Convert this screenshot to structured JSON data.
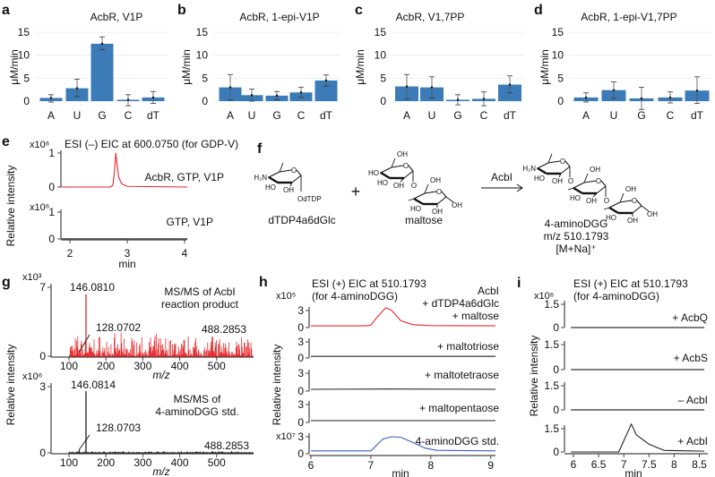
{
  "panel_letters": [
    "a",
    "b",
    "c",
    "d",
    "e",
    "f",
    "g",
    "h",
    "i"
  ],
  "chart_data": [
    {
      "panel": "a",
      "type": "bar",
      "title": "AcbR, V1P",
      "ylabel": "μM/min",
      "categories": [
        "A",
        "U",
        "G",
        "C",
        "dT"
      ],
      "values": [
        0.7,
        2.8,
        12.5,
        0.3,
        0.8
      ],
      "err_low": [
        -0.2,
        1.0,
        11.2,
        -1.0,
        -0.5
      ],
      "err_high": [
        1.4,
        4.8,
        14.0,
        1.4,
        2.1
      ],
      "ylim": [
        0,
        15
      ],
      "yticks": [
        0,
        5,
        10,
        15
      ],
      "color": "#3a7bb8"
    },
    {
      "panel": "b",
      "type": "bar",
      "title": "AcbR, 1-epi-V1P",
      "ylabel": "μM/min",
      "categories": [
        "A",
        "U",
        "G",
        "C",
        "dT"
      ],
      "values": [
        3.0,
        1.3,
        1.2,
        1.9,
        4.5
      ],
      "err_low": [
        0.2,
        0.0,
        0.3,
        0.8,
        3.3
      ],
      "err_high": [
        5.8,
        2.6,
        2.1,
        3.0,
        5.7
      ],
      "ylim": [
        0,
        15
      ],
      "yticks": [
        0,
        5,
        10,
        15
      ],
      "color": "#3a7bb8"
    },
    {
      "panel": "c",
      "type": "bar",
      "title": "AcbR, V1,7PP",
      "ylabel": "μM/min",
      "categories": [
        "A",
        "U",
        "G",
        "C",
        "dT"
      ],
      "values": [
        3.2,
        3.0,
        0.3,
        0.5,
        3.6
      ],
      "err_low": [
        0.5,
        0.7,
        -0.8,
        -1.0,
        1.8
      ],
      "err_high": [
        5.8,
        5.3,
        1.4,
        2.0,
        5.5
      ],
      "ylim": [
        0,
        15
      ],
      "yticks": [
        0,
        5,
        10,
        15
      ],
      "color": "#3a7bb8"
    },
    {
      "panel": "d",
      "type": "bar",
      "title": "AcbR, 1-epi-V1,7PP",
      "ylabel": "μM/min",
      "categories": [
        "A",
        "U",
        "G",
        "C",
        "dT"
      ],
      "values": [
        0.8,
        2.4,
        0.6,
        0.8,
        2.3
      ],
      "err_low": [
        -0.2,
        0.6,
        -1.8,
        -0.4,
        -0.5
      ],
      "err_high": [
        1.8,
        4.2,
        3.0,
        2.0,
        5.3
      ],
      "ylim": [
        0,
        15
      ],
      "yticks": [
        0,
        5,
        10,
        15
      ],
      "color": "#3a7bb8"
    },
    {
      "panel": "e",
      "type": "line",
      "title": "ESI (–) EIC at 600.0750 (for GDP-V)",
      "xlabel": "min",
      "ylabel": "Relative intensity",
      "xlim": [
        1.85,
        4.05
      ],
      "xticks": [
        2,
        3,
        4
      ],
      "subplots": [
        {
          "label": "AcbR, GTP, V1P",
          "scale": "x10⁶",
          "yticks": [
            0,
            1
          ],
          "color": "#e8262a",
          "points": [
            [
              1.85,
              0
            ],
            [
              2.7,
              0
            ],
            [
              2.75,
              0.05
            ],
            [
              2.78,
              0.5
            ],
            [
              2.8,
              1.0
            ],
            [
              2.82,
              0.7
            ],
            [
              2.85,
              0.3
            ],
            [
              2.9,
              0.1
            ],
            [
              3.0,
              0.02
            ],
            [
              4.05,
              0
            ]
          ]
        },
        {
          "label": "GTP, V1P",
          "scale": "x10⁶",
          "yticks": [
            0,
            1
          ],
          "color": "#555555",
          "points": [
            [
              1.85,
              0
            ],
            [
              4.05,
              0
            ]
          ]
        }
      ]
    },
    {
      "panel": "g",
      "type": "line",
      "xlabel": "m/z",
      "ylabel": "Relative intensity",
      "xlim": [
        50,
        600
      ],
      "xticks": [
        100,
        200,
        300,
        400,
        500
      ],
      "subplots": [
        {
          "title_lines": [
            "MS/MS of AcbI",
            "reaction product"
          ],
          "scale": "x10³",
          "yticks": [
            0,
            7
          ],
          "color": "#e8262a",
          "peaks": [
            {
              "mz": 146.081,
              "intensity": 6.3,
              "label": "146.0810"
            },
            {
              "mz": 128.0702,
              "intensity": 0.5,
              "label": "128.0702"
            },
            {
              "mz": 488.2853,
              "intensity": 2.0,
              "label": "488.2853"
            }
          ]
        },
        {
          "title_lines": [
            "MS/MS of",
            "4-aminoDGG std."
          ],
          "scale": "x10⁶",
          "yticks": [
            0,
            3
          ],
          "color": "#222222",
          "peaks": [
            {
              "mz": 146.0814,
              "intensity": 2.8,
              "label": "146.0814"
            },
            {
              "mz": 128.0703,
              "intensity": 0.12,
              "label": "128.0703"
            },
            {
              "mz": 488.2853,
              "intensity": 0.08,
              "label": "488.2853"
            }
          ]
        }
      ]
    },
    {
      "panel": "h",
      "type": "line",
      "title_lines": [
        "ESI (+) EIC at 510.1793",
        "(for 4-aminoDGG)"
      ],
      "xlabel": "min",
      "ylabel": "Relative intensity",
      "xlim": [
        6,
        9.08
      ],
      "xticks": [
        6,
        7,
        8,
        9
      ],
      "subplots": [
        {
          "label_lines": [
            "AcbI",
            "+ dTDP4a6dGlc",
            "+ maltose"
          ],
          "scale": "x10⁵",
          "yticks": [
            0,
            3
          ],
          "color": "#e8262a",
          "points": [
            [
              6,
              0.3
            ],
            [
              6.9,
              0.3
            ],
            [
              7.0,
              0.4
            ],
            [
              7.1,
              1.8
            ],
            [
              7.25,
              3.5
            ],
            [
              7.35,
              3.0
            ],
            [
              7.5,
              1.2
            ],
            [
              7.7,
              0.5
            ],
            [
              8,
              0.35
            ],
            [
              9.08,
              0.3
            ]
          ]
        },
        {
          "label_lines": [
            "+ maltotriose"
          ],
          "yticks": [
            0,
            3
          ],
          "color": "#222222",
          "points": [
            [
              6,
              0.3
            ],
            [
              9.08,
              0.3
            ]
          ]
        },
        {
          "label_lines": [
            "+ maltotetraose"
          ],
          "yticks": [
            0,
            3
          ],
          "color": "#222222",
          "points": [
            [
              6,
              0.3
            ],
            [
              7.3,
              0.35
            ],
            [
              9.08,
              0.3
            ]
          ]
        },
        {
          "label_lines": [
            "+ maltopentaose"
          ],
          "yticks": [
            0,
            3
          ],
          "color": "#222222",
          "points": [
            [
              6,
              0.3
            ],
            [
              9.08,
              0.3
            ]
          ]
        },
        {
          "label_lines": [
            "4-aminoDGG std."
          ],
          "scale": "x10⁷",
          "yticks": [
            0,
            3
          ],
          "color": "#3a5fbf",
          "points": [
            [
              6,
              0.5
            ],
            [
              7.0,
              0.5
            ],
            [
              7.05,
              1.0
            ],
            [
              7.2,
              2.6
            ],
            [
              7.35,
              3.0
            ],
            [
              7.5,
              2.9
            ],
            [
              7.7,
              2.0
            ],
            [
              7.9,
              1.0
            ],
            [
              8.1,
              0.6
            ],
            [
              9.08,
              0.5
            ]
          ]
        }
      ]
    },
    {
      "panel": "i",
      "type": "line",
      "title_lines": [
        "ESI (+) EIC at 510.1793",
        "(for 4-aminoDGG)"
      ],
      "xlabel": "min",
      "ylabel": "Relative intensity",
      "xlim": [
        5.95,
        8.6
      ],
      "xticks": [
        6,
        6.5,
        7,
        7.5,
        8,
        8.5
      ],
      "scale": "x10⁶",
      "subplots": [
        {
          "label": "+ AcbQ",
          "yticks": [
            0,
            1.5
          ],
          "color": "#555555",
          "points": [
            [
              5.95,
              0
            ],
            [
              8.6,
              0
            ]
          ]
        },
        {
          "label": "+ AcbS",
          "yticks": [
            0,
            1.5
          ],
          "color": "#555555",
          "points": [
            [
              5.95,
              0
            ],
            [
              8.6,
              0
            ]
          ]
        },
        {
          "label": "– AcbI",
          "yticks": [
            0,
            1.5
          ],
          "color": "#555555",
          "points": [
            [
              5.95,
              0
            ],
            [
              8.6,
              0
            ]
          ]
        },
        {
          "label": "+ AcbI",
          "yticks": [
            0,
            1.5
          ],
          "color": "#222222",
          "points": [
            [
              5.95,
              0
            ],
            [
              6.9,
              0
            ],
            [
              7.15,
              1.8
            ],
            [
              7.25,
              1.1
            ],
            [
              7.5,
              0.5
            ],
            [
              7.8,
              0.1
            ],
            [
              8.6,
              0.05
            ]
          ]
        }
      ]
    }
  ],
  "scheme": {
    "reactant1": "dTDP4a6dGlc",
    "reactant2": "maltose",
    "plus": "+",
    "enzyme": "AcbI",
    "product": "4-aminoDGG",
    "product_mz": "m/z 510.1793",
    "product_ion": "[M+Na]⁺",
    "atoms": {
      "amine": "H₂N",
      "ho": "HO",
      "oh": "OH",
      "o": "O",
      "odtdp": "OdTDP"
    }
  }
}
